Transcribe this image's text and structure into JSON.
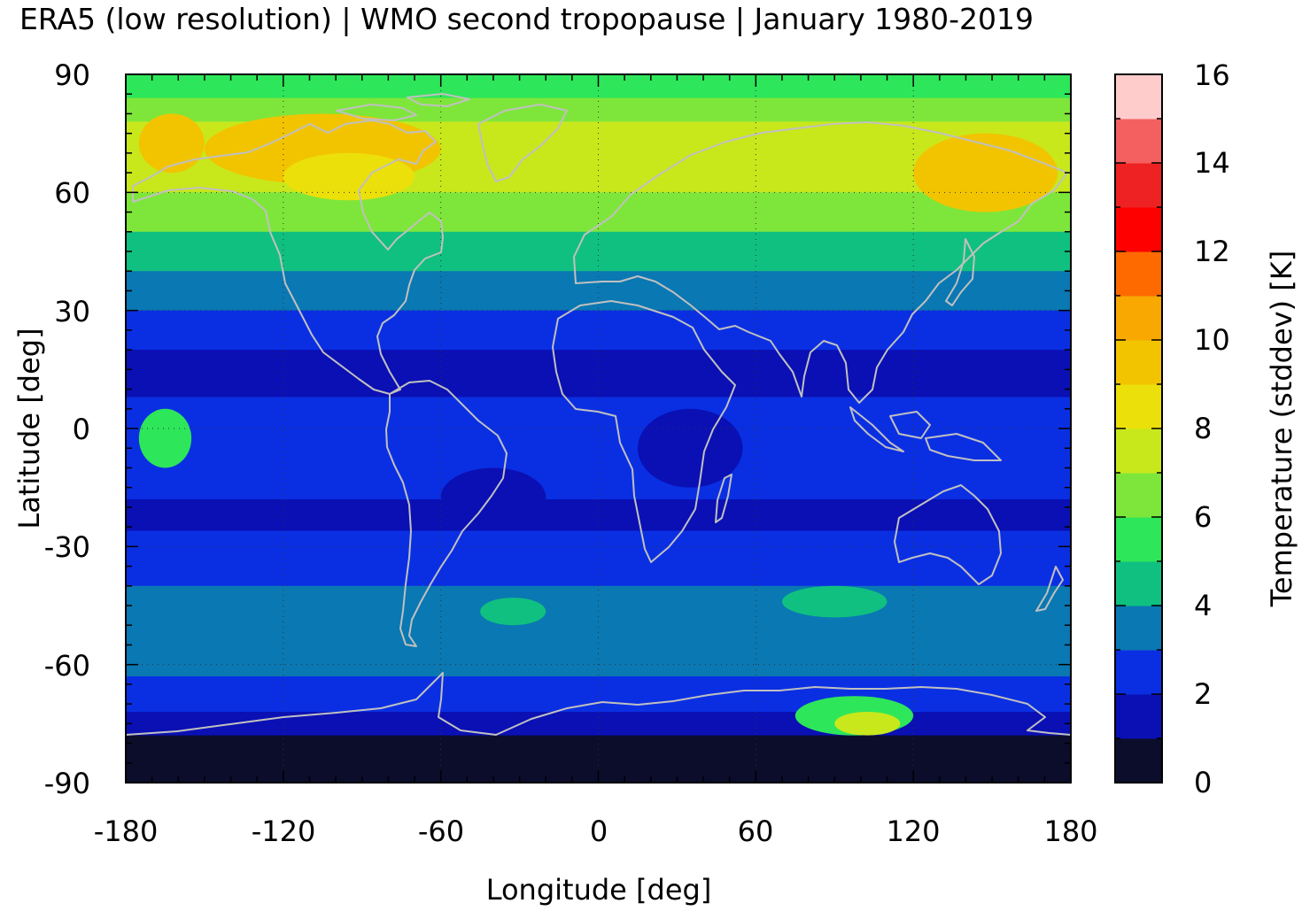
{
  "title": "ERA5 (low resolution) | WMO second tropopause | January 1980-2019",
  "chart_data": {
    "type": "heatmap",
    "title": "ERA5 (low resolution) | WMO second tropopause | January 1980-2019",
    "xlabel": "Longitude [deg]",
    "ylabel": "Latitude [deg]",
    "xlim": [
      -180,
      180
    ],
    "ylim": [
      -90,
      90
    ],
    "x_ticks": [
      "-180",
      "-120",
      "-60",
      "0",
      "60",
      "120",
      "180"
    ],
    "y_ticks": [
      "90",
      "60",
      "30",
      "0",
      "-30",
      "-60",
      "-90"
    ],
    "grid": "dotted at 60 deg longitude / 30 deg latitude",
    "overlay": "coastlines (light gray)",
    "colorbar": {
      "label": "Temperature (stddev) [K]",
      "range": [
        0,
        16
      ],
      "ticks": [
        "0",
        "2",
        "4",
        "6",
        "8",
        "10",
        "12",
        "14",
        "16"
      ],
      "levels": [
        {
          "from": 0,
          "to": 1,
          "color": "#0b0d2b"
        },
        {
          "from": 1,
          "to": 2,
          "color": "#0a10b3"
        },
        {
          "from": 2,
          "to": 3,
          "color": "#0a2fe3"
        },
        {
          "from": 3,
          "to": 4,
          "color": "#0a78b2"
        },
        {
          "from": 4,
          "to": 5,
          "color": "#10c080"
        },
        {
          "from": 5,
          "to": 6,
          "color": "#2ee65a"
        },
        {
          "from": 6,
          "to": 7,
          "color": "#7ee63a"
        },
        {
          "from": 7,
          "to": 8,
          "color": "#c8e81c"
        },
        {
          "from": 8,
          "to": 9,
          "color": "#ece00a"
        },
        {
          "from": 9,
          "to": 10,
          "color": "#f2c400"
        },
        {
          "from": 10,
          "to": 11,
          "color": "#f8a800"
        },
        {
          "from": 11,
          "to": 12,
          "color": "#ff6a00"
        },
        {
          "from": 12,
          "to": 13,
          "color": "#ff0000"
        },
        {
          "from": 13,
          "to": 14,
          "color": "#ee2222"
        },
        {
          "from": 14,
          "to": 15,
          "color": "#f46060"
        },
        {
          "from": 15,
          "to": 16,
          "color": "#ffcccc"
        }
      ]
    },
    "zonal_bands": [
      {
        "lat_max": 90,
        "lat_min": 84,
        "value": 5.5
      },
      {
        "lat_max": 84,
        "lat_min": 78,
        "value": 6.5
      },
      {
        "lat_max": 78,
        "lat_min": 60,
        "value": 7.5
      },
      {
        "lat_max": 60,
        "lat_min": 50,
        "value": 6.5
      },
      {
        "lat_max": 50,
        "lat_min": 40,
        "value": 4.5
      },
      {
        "lat_max": 40,
        "lat_min": 30,
        "value": 3.5
      },
      {
        "lat_max": 30,
        "lat_min": 20,
        "value": 2.5
      },
      {
        "lat_max": 20,
        "lat_min": 8,
        "value": 1.5
      },
      {
        "lat_max": 8,
        "lat_min": -18,
        "value": 2.5
      },
      {
        "lat_max": -18,
        "lat_min": -26,
        "value": 1.5
      },
      {
        "lat_max": -26,
        "lat_min": -40,
        "value": 2.5
      },
      {
        "lat_max": -40,
        "lat_min": -55,
        "value": 3.5
      },
      {
        "lat_max": -55,
        "lat_min": -63,
        "value": 3.5
      },
      {
        "lat_max": -63,
        "lat_min": -72,
        "value": 2.5
      },
      {
        "lat_max": -72,
        "lat_min": -78,
        "value": 1.5
      },
      {
        "lat_max": -78,
        "lat_min": -90,
        "value": 0.5
      }
    ],
    "regional_features": [
      {
        "lon": [
          -150,
          -60
        ],
        "lat": [
          62,
          80
        ],
        "value": 9.5
      },
      {
        "lon": [
          -120,
          -70
        ],
        "lat": [
          58,
          70
        ],
        "value": 8.5
      },
      {
        "lon": [
          120,
          175
        ],
        "lat": [
          55,
          75
        ],
        "value": 9.5
      },
      {
        "lon": [
          -175,
          -150
        ],
        "lat": [
          65,
          80
        ],
        "value": 9.5
      },
      {
        "lon": [
          -175,
          -155
        ],
        "lat": [
          -10,
          5
        ],
        "value": 5.5
      },
      {
        "lon": [
          -60,
          -20
        ],
        "lat": [
          -10,
          -25
        ],
        "value": 1.5
      },
      {
        "lon": [
          15,
          55
        ],
        "lat": [
          5,
          -15
        ],
        "value": 1.5
      },
      {
        "lon": [
          -45,
          -20
        ],
        "lat": [
          -43,
          -50
        ],
        "value": 4.5
      },
      {
        "lon": [
          70,
          110
        ],
        "lat": [
          -40,
          -48
        ],
        "value": 4.5
      },
      {
        "lon": [
          75,
          120
        ],
        "lat": [
          -68,
          -78
        ],
        "value": 5.5
      },
      {
        "lon": [
          90,
          115
        ],
        "lat": [
          -72,
          -78
        ],
        "value": 7.5
      }
    ]
  }
}
